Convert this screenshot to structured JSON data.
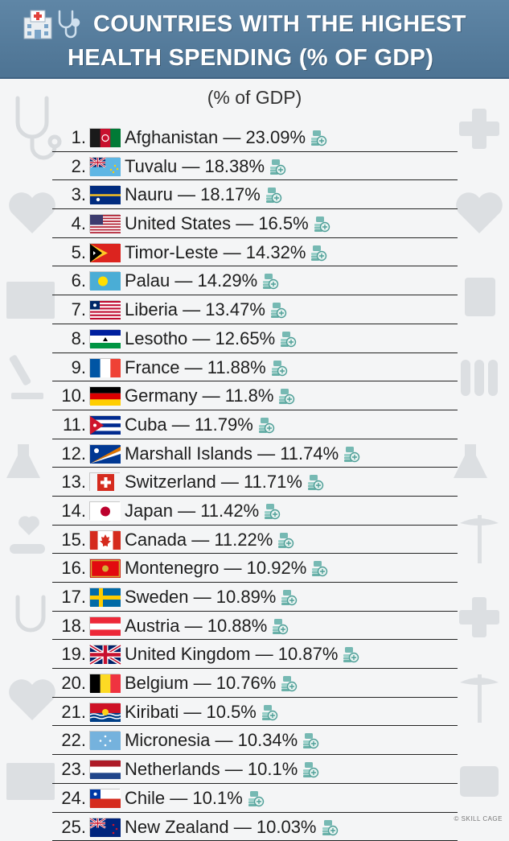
{
  "header": {
    "title_line1": "COUNTRIES WITH THE HIGHEST",
    "title_line2": "HEALTH SPENDING (% OF GDP)",
    "icons": [
      "hospital-icon",
      "stethoscope-icon"
    ]
  },
  "subtitle": "(% of GDP)",
  "ranking": [
    {
      "rank": "1.",
      "country": "Afghanistan",
      "value": "23.09%",
      "flag": "afghanistan"
    },
    {
      "rank": "2.",
      "country": "Tuvalu",
      "value": "18.38%",
      "flag": "tuvalu"
    },
    {
      "rank": "3.",
      "country": "Nauru",
      "value": "18.17%",
      "flag": "nauru"
    },
    {
      "rank": "4.",
      "country": "United States",
      "value": "16.5%",
      "flag": "usa"
    },
    {
      "rank": "5.",
      "country": "Timor-Leste",
      "value": "14.32%",
      "flag": "timor"
    },
    {
      "rank": "6.",
      "country": "Palau",
      "value": "14.29%",
      "flag": "palau"
    },
    {
      "rank": "7.",
      "country": "Liberia",
      "value": "13.47%",
      "flag": "liberia"
    },
    {
      "rank": "8.",
      "country": "Lesotho",
      "value": "12.65%",
      "flag": "lesotho"
    },
    {
      "rank": "9.",
      "country": "France",
      "value": "11.88%",
      "flag": "france"
    },
    {
      "rank": "10.",
      "country": "Germany",
      "value": "11.8%",
      "flag": "germany"
    },
    {
      "rank": "11.",
      "country": "Cuba",
      "value": "11.79%",
      "flag": "cuba"
    },
    {
      "rank": "12.",
      "country": "Marshall Islands",
      "value": "11.74%",
      "flag": "marshall"
    },
    {
      "rank": "13.",
      "country": "Switzerland",
      "value": "11.71%",
      "flag": "switzerland"
    },
    {
      "rank": "14.",
      "country": "Japan",
      "value": "11.42%",
      "flag": "japan"
    },
    {
      "rank": "15.",
      "country": "Canada",
      "value": "11.22%",
      "flag": "canada"
    },
    {
      "rank": "16.",
      "country": "Montenegro",
      "value": "10.92%",
      "flag": "montenegro"
    },
    {
      "rank": "17.",
      "country": "Sweden",
      "value": "10.89%",
      "flag": "sweden"
    },
    {
      "rank": "18.",
      "country": "Austria",
      "value": "10.88%",
      "flag": "austria"
    },
    {
      "rank": "19.",
      "country": "United Kingdom",
      "value": "10.87%",
      "flag": "uk"
    },
    {
      "rank": "20.",
      "country": "Belgium",
      "value": "10.76%",
      "flag": "belgium"
    },
    {
      "rank": "21.",
      "country": "Kiribati",
      "value": "10.5%",
      "flag": "kiribati"
    },
    {
      "rank": "22.",
      "country": "Micronesia",
      "value": "10.34%",
      "flag": "micronesia"
    },
    {
      "rank": "23.",
      "country": "Netherlands",
      "value": "10.1%",
      "flag": "netherlands"
    },
    {
      "rank": "24.",
      "country": "Chile",
      "value": "10.1%",
      "flag": "chile"
    },
    {
      "rank": "25.",
      "country": "New Zealand",
      "value": "10.03%",
      "flag": "newzealand"
    }
  ],
  "separator": " — ",
  "watermark": "© SKILL CAGE",
  "colors": {
    "header_bg": "#5a80a0",
    "text": "#1d1d1d",
    "icon_teal": "#5aa8a4"
  }
}
